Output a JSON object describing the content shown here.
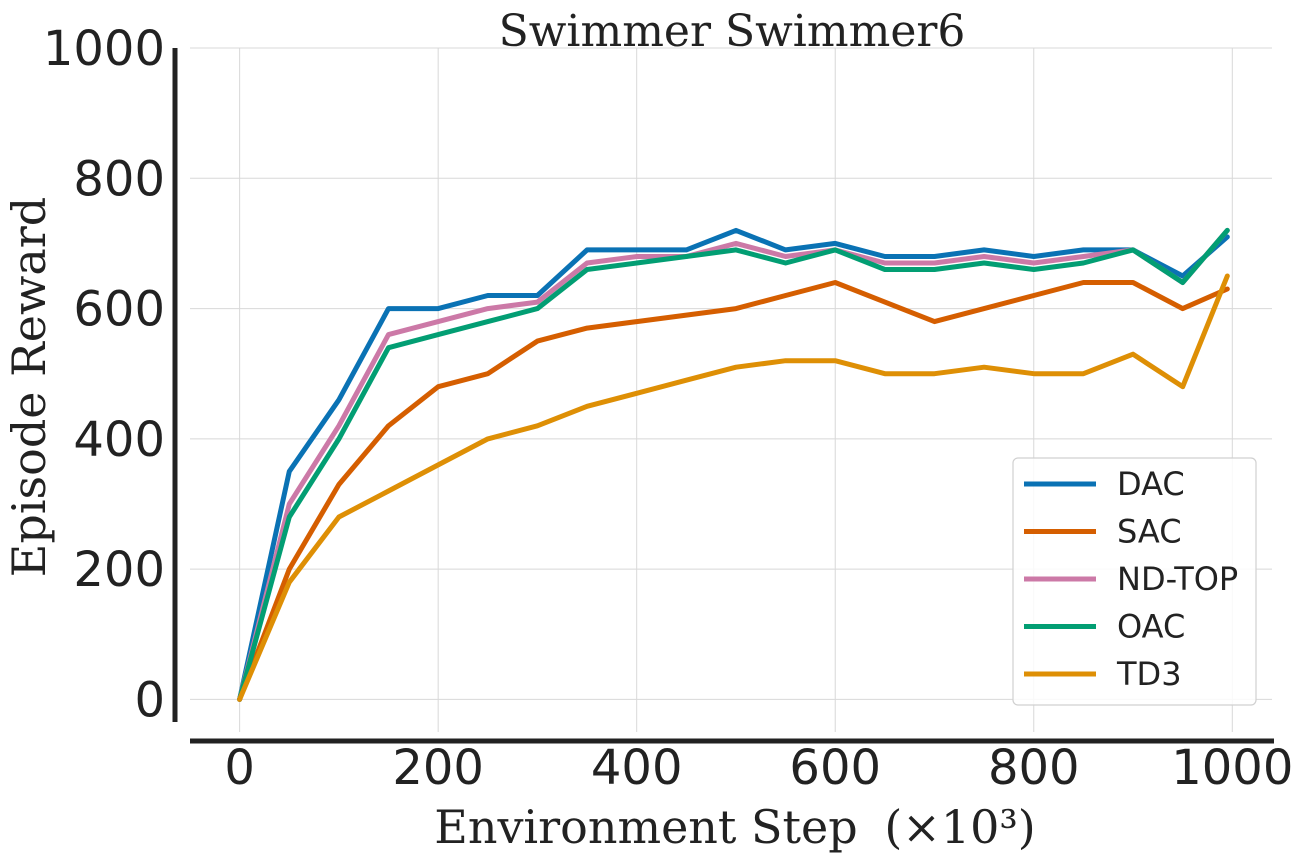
{
  "chart_data": {
    "type": "line",
    "title": "Swimmer Swimmer6",
    "xlabel": "Environment Step",
    "xlabel_unit": "(×10³)",
    "ylabel": "Episode Reward",
    "xlim": [
      -50,
      1040
    ],
    "ylim": [
      -50,
      1000
    ],
    "xticks": [
      0,
      200,
      400,
      600,
      800,
      1000
    ],
    "yticks": [
      0,
      200,
      400,
      600,
      800,
      1000
    ],
    "grid": true,
    "legend_position": "bottom-right",
    "colors": {
      "DAC": "#0a72b4",
      "SAC": "#d55e00",
      "ND-TOP": "#cc79a7",
      "OAC": "#029e73",
      "TD3": "#de8f05"
    },
    "series": [
      {
        "name": "DAC",
        "x": [
          0,
          50,
          100,
          150,
          200,
          250,
          300,
          350,
          400,
          450,
          500,
          550,
          600,
          650,
          700,
          750,
          800,
          850,
          900,
          950,
          995
        ],
        "values": [
          0,
          350,
          460,
          600,
          600,
          620,
          620,
          690,
          690,
          690,
          720,
          690,
          700,
          680,
          680,
          690,
          680,
          690,
          690,
          650,
          710
        ]
      },
      {
        "name": "SAC",
        "x": [
          0,
          50,
          100,
          150,
          200,
          250,
          300,
          350,
          400,
          450,
          500,
          550,
          600,
          650,
          700,
          750,
          800,
          850,
          900,
          950,
          995
        ],
        "values": [
          0,
          200,
          330,
          420,
          480,
          500,
          550,
          570,
          580,
          590,
          600,
          620,
          640,
          610,
          580,
          600,
          620,
          640,
          640,
          600,
          630
        ]
      },
      {
        "name": "ND-TOP",
        "x": [
          0,
          50,
          100,
          150,
          200,
          250,
          300,
          350,
          400,
          450,
          500,
          550,
          600,
          650,
          700,
          750,
          800,
          850,
          900,
          950,
          995
        ],
        "values": [
          0,
          300,
          420,
          560,
          580,
          600,
          610,
          670,
          680,
          680,
          700,
          680,
          690,
          670,
          670,
          680,
          670,
          680,
          690,
          640,
          720
        ]
      },
      {
        "name": "OAC",
        "x": [
          0,
          50,
          100,
          150,
          200,
          250,
          300,
          350,
          400,
          450,
          500,
          550,
          600,
          650,
          700,
          750,
          800,
          850,
          900,
          950,
          995
        ],
        "values": [
          0,
          280,
          400,
          540,
          560,
          580,
          600,
          660,
          670,
          680,
          690,
          670,
          690,
          660,
          660,
          670,
          660,
          670,
          690,
          640,
          720
        ]
      },
      {
        "name": "TD3",
        "x": [
          0,
          50,
          100,
          150,
          200,
          250,
          300,
          350,
          400,
          450,
          500,
          550,
          600,
          650,
          700,
          750,
          800,
          850,
          900,
          950,
          995
        ],
        "values": [
          0,
          180,
          280,
          320,
          360,
          400,
          420,
          450,
          470,
          490,
          510,
          520,
          520,
          500,
          500,
          510,
          500,
          500,
          530,
          480,
          650
        ]
      }
    ]
  }
}
